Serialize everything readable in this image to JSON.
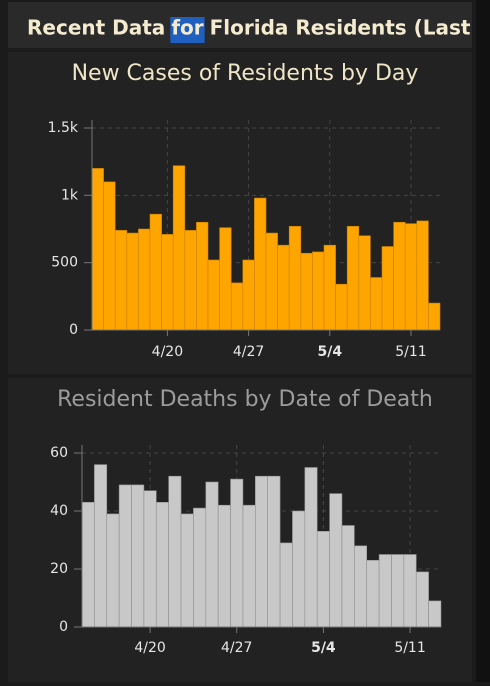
{
  "header": {
    "title": [
      "Recent Data",
      "for",
      "Florida Residents (Last"
    ],
    "highlighted": 1
  },
  "chart_data": [
    {
      "type": "bar",
      "title": "New Cases of Residents by Day",
      "color": "#ffa500",
      "edge": "#c77f00",
      "title_color": "#efe6c6",
      "categories": [
        null,
        null,
        null,
        null,
        null,
        null,
        "4/20",
        null,
        null,
        null,
        null,
        null,
        null,
        "4/27",
        null,
        null,
        null,
        null,
        null,
        null,
        "5/4",
        null,
        null,
        null,
        null,
        null,
        null,
        "5/11",
        null,
        null
      ],
      "bold_category": 20,
      "values": [
        1200,
        1100,
        740,
        720,
        750,
        860,
        710,
        1220,
        740,
        800,
        520,
        760,
        350,
        520,
        980,
        720,
        630,
        770,
        570,
        580,
        630,
        340,
        770,
        700,
        390,
        620,
        800,
        790,
        810,
        200
      ],
      "ylim": [
        0,
        1500
      ],
      "yticks": [
        0,
        500,
        {
          "value": 1000,
          "label": "1k"
        },
        {
          "value": 1500,
          "label": "1.5k"
        }
      ],
      "grid": true
    },
    {
      "type": "bar",
      "title": "Resident Deaths by Date of Death",
      "color": "#c8c8c8",
      "edge": "#8f8f8f",
      "title_color": "#9c9c9c",
      "categories": [
        null,
        null,
        null,
        null,
        null,
        "4/20",
        null,
        null,
        null,
        null,
        null,
        null,
        "4/27",
        null,
        null,
        null,
        null,
        null,
        null,
        "5/4",
        null,
        null,
        null,
        null,
        null,
        null,
        "5/11",
        null,
        null
      ],
      "bold_category": 19,
      "values": [
        43,
        56,
        39,
        49,
        49,
        47,
        43,
        52,
        39,
        41,
        50,
        42,
        51,
        42,
        52,
        52,
        29,
        40,
        55,
        33,
        46,
        35,
        28,
        23,
        25,
        25,
        25,
        19,
        9
      ],
      "ylim": [
        0,
        60
      ],
      "yticks": [
        0,
        20,
        40,
        60
      ],
      "grid": true
    }
  ]
}
